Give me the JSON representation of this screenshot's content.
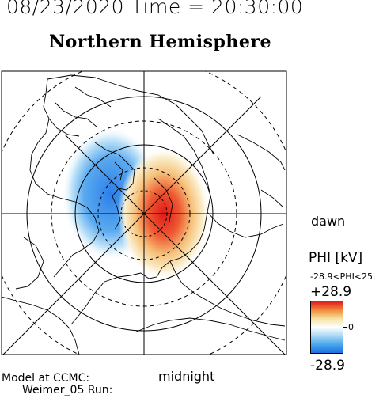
{
  "header": {
    "date_time_line": "08/23/2020 Time = 20:30:00",
    "hemisphere_title": "Northern Hemisphere"
  },
  "map": {
    "direction_labels": {
      "dawn": "dawn",
      "midnight": "midnight"
    },
    "potential_pattern": {
      "negative_cell_color": "#3b8fe8",
      "positive_cell_color": "#e02020",
      "zero_color": "#ffffff"
    }
  },
  "colorbar": {
    "title": "PHI [kV]",
    "range_text": "-28.9<PHI<25.",
    "max_label": "+28.9",
    "zero_label": "0",
    "min_label": "-28.9",
    "gradient_stops": [
      "#e01a1a",
      "#f08a3a",
      "#f5e3a0",
      "#ffffff",
      "#a9d8f5",
      "#4aa8ee",
      "#1e6fe0"
    ]
  },
  "footer": {
    "model_line1": "Model at CCMC:",
    "model_line2": "Weimer_05 Run:"
  }
}
